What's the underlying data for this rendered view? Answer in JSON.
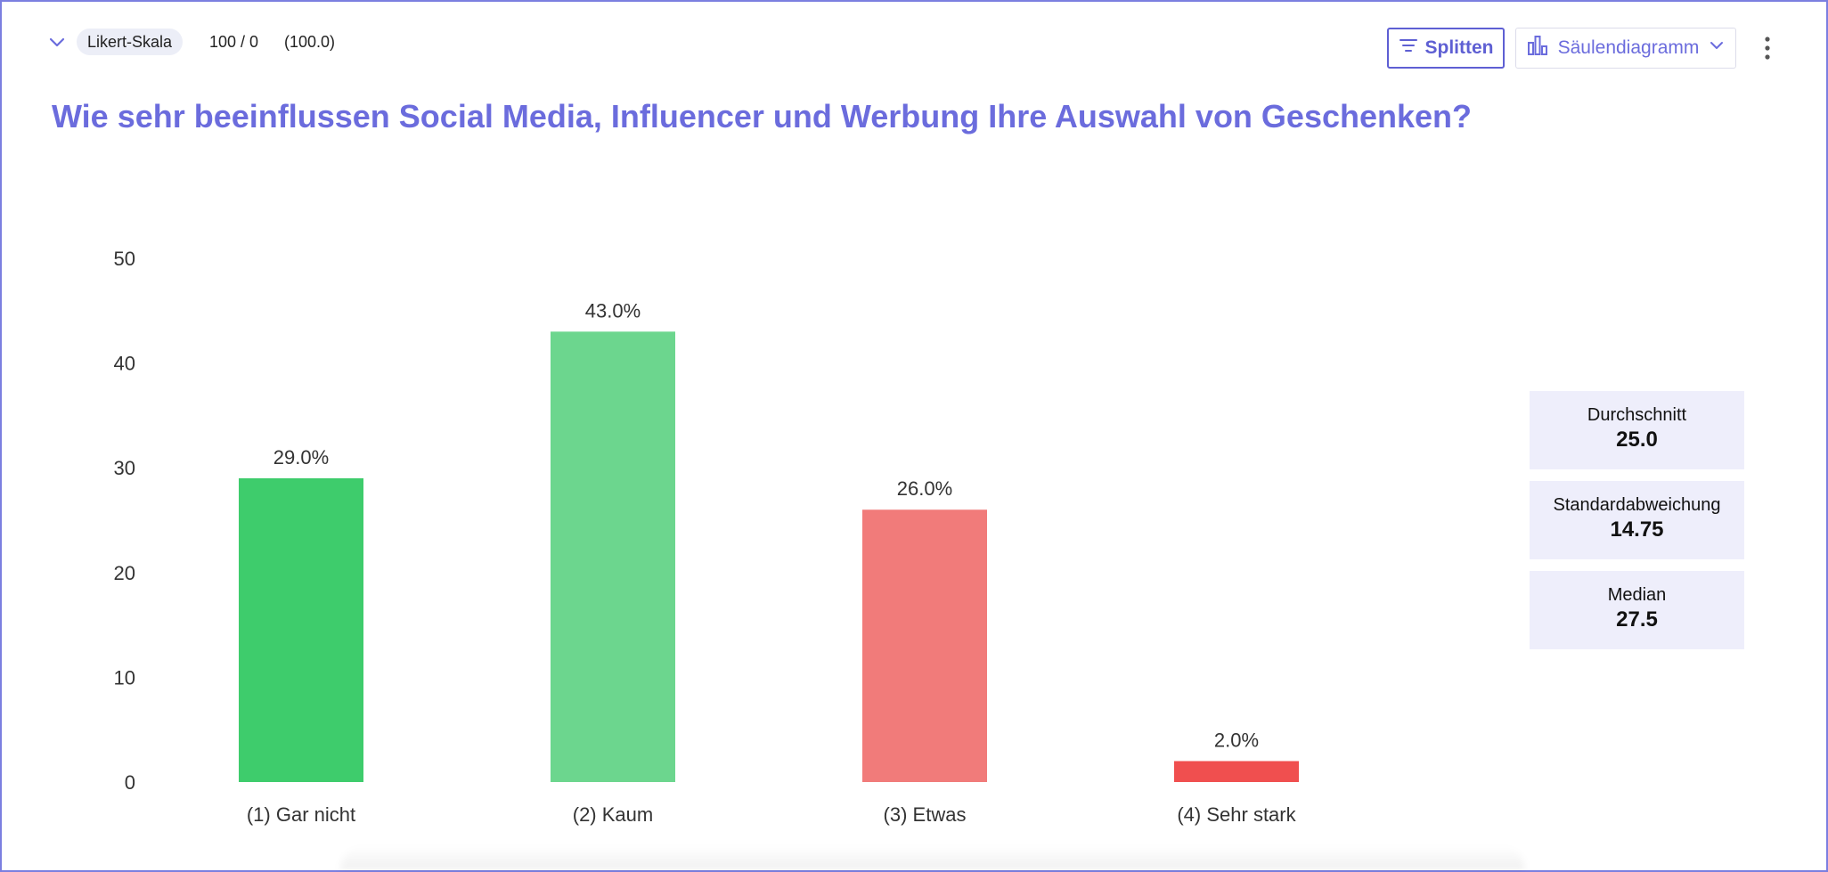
{
  "header": {
    "tag_label": "Likert-Skala",
    "count": "100 / 0",
    "percent": "(100.0)",
    "split_label": "Splitten",
    "chart_type_label": "Säulendiagramm",
    "icons": {
      "collapse": "chevron-down-icon",
      "split": "filter-icon",
      "chart_type": "bar-chart-icon",
      "dropdown": "chevron-down-icon",
      "more": "more-vertical-icon"
    }
  },
  "title": "Wie sehr beeinflussen Social Media, Influencer und Werbung Ihre Auswahl von Geschenken?",
  "stats": [
    {
      "label": "Durchschnitt",
      "value": "25.0"
    },
    {
      "label": "Standardabweichung",
      "value": "14.75"
    },
    {
      "label": "Median",
      "value": "27.5"
    }
  ],
  "colors": {
    "accent": "#6b6cdd",
    "stat_bg": "#eeeefb"
  },
  "chart_data": {
    "type": "bar",
    "title": "Wie sehr beeinflussen Social Media, Influencer und Werbung Ihre Auswahl von Geschenken?",
    "xlabel": "",
    "ylabel": "",
    "ylim": [
      0,
      50
    ],
    "yticks": [
      0,
      10,
      20,
      30,
      40,
      50
    ],
    "grid": false,
    "categories": [
      "(1) Gar nicht",
      "(2) Kaum",
      "(3) Etwas",
      "(4) Sehr stark"
    ],
    "values": [
      29.0,
      43.0,
      26.0,
      2.0
    ],
    "data_labels": [
      "29.0%",
      "43.0%",
      "26.0%",
      "2.0%"
    ],
    "colors": [
      "#3ecc6c",
      "#6cd68e",
      "#f17b7a",
      "#f04f4f"
    ]
  }
}
